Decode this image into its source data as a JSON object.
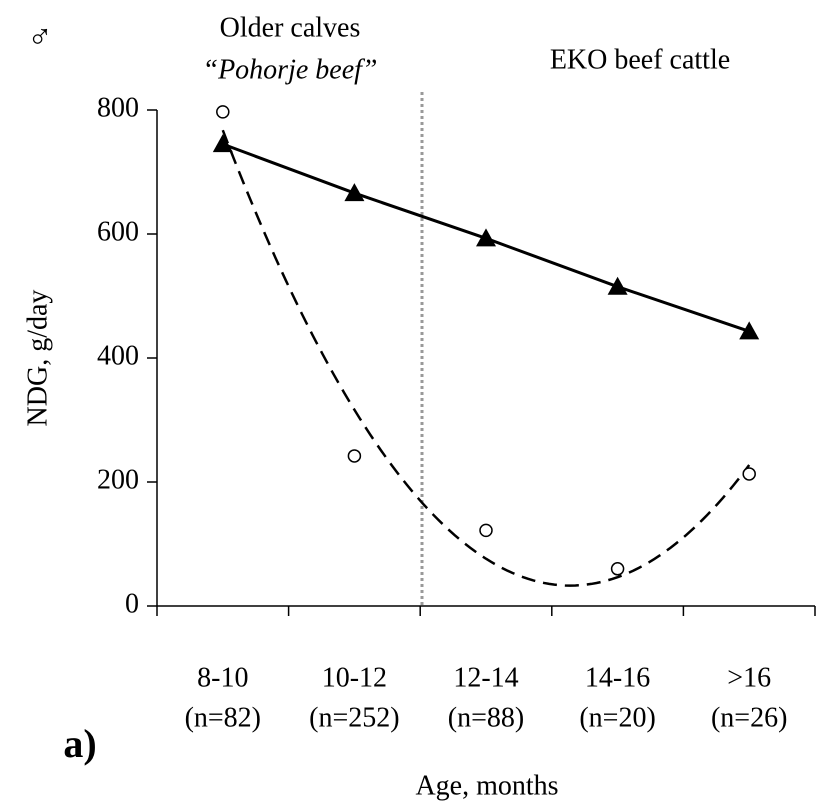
{
  "chart_data": {
    "type": "line",
    "symbol": "♂",
    "panel_label": "a)",
    "annotations": [
      "Older calves",
      "“Pohorje beef”",
      "EKO beef cattle"
    ],
    "xlabel": "Age, months",
    "ylabel": "NDG, g/day",
    "categories": [
      [
        "8-10",
        "(n=82)"
      ],
      [
        "10-12",
        "(n=252)"
      ],
      [
        "12-14",
        "(n=88)"
      ],
      [
        "14-16",
        "(n=20)"
      ],
      [
        ">16",
        "(n=26)"
      ]
    ],
    "series": [
      {
        "marker": "triangle",
        "color": "#000000",
        "line": "solid",
        "values": [
          745,
          666,
          593,
          515,
          443
        ]
      },
      {
        "marker": "circle",
        "color": "#000000",
        "line": "dashed-quadratic-fit",
        "values": [
          797,
          242,
          122,
          60,
          213
        ]
      }
    ],
    "ylim": [
      0,
      800
    ],
    "yticks": [
      0,
      200,
      400,
      600,
      800
    ]
  }
}
